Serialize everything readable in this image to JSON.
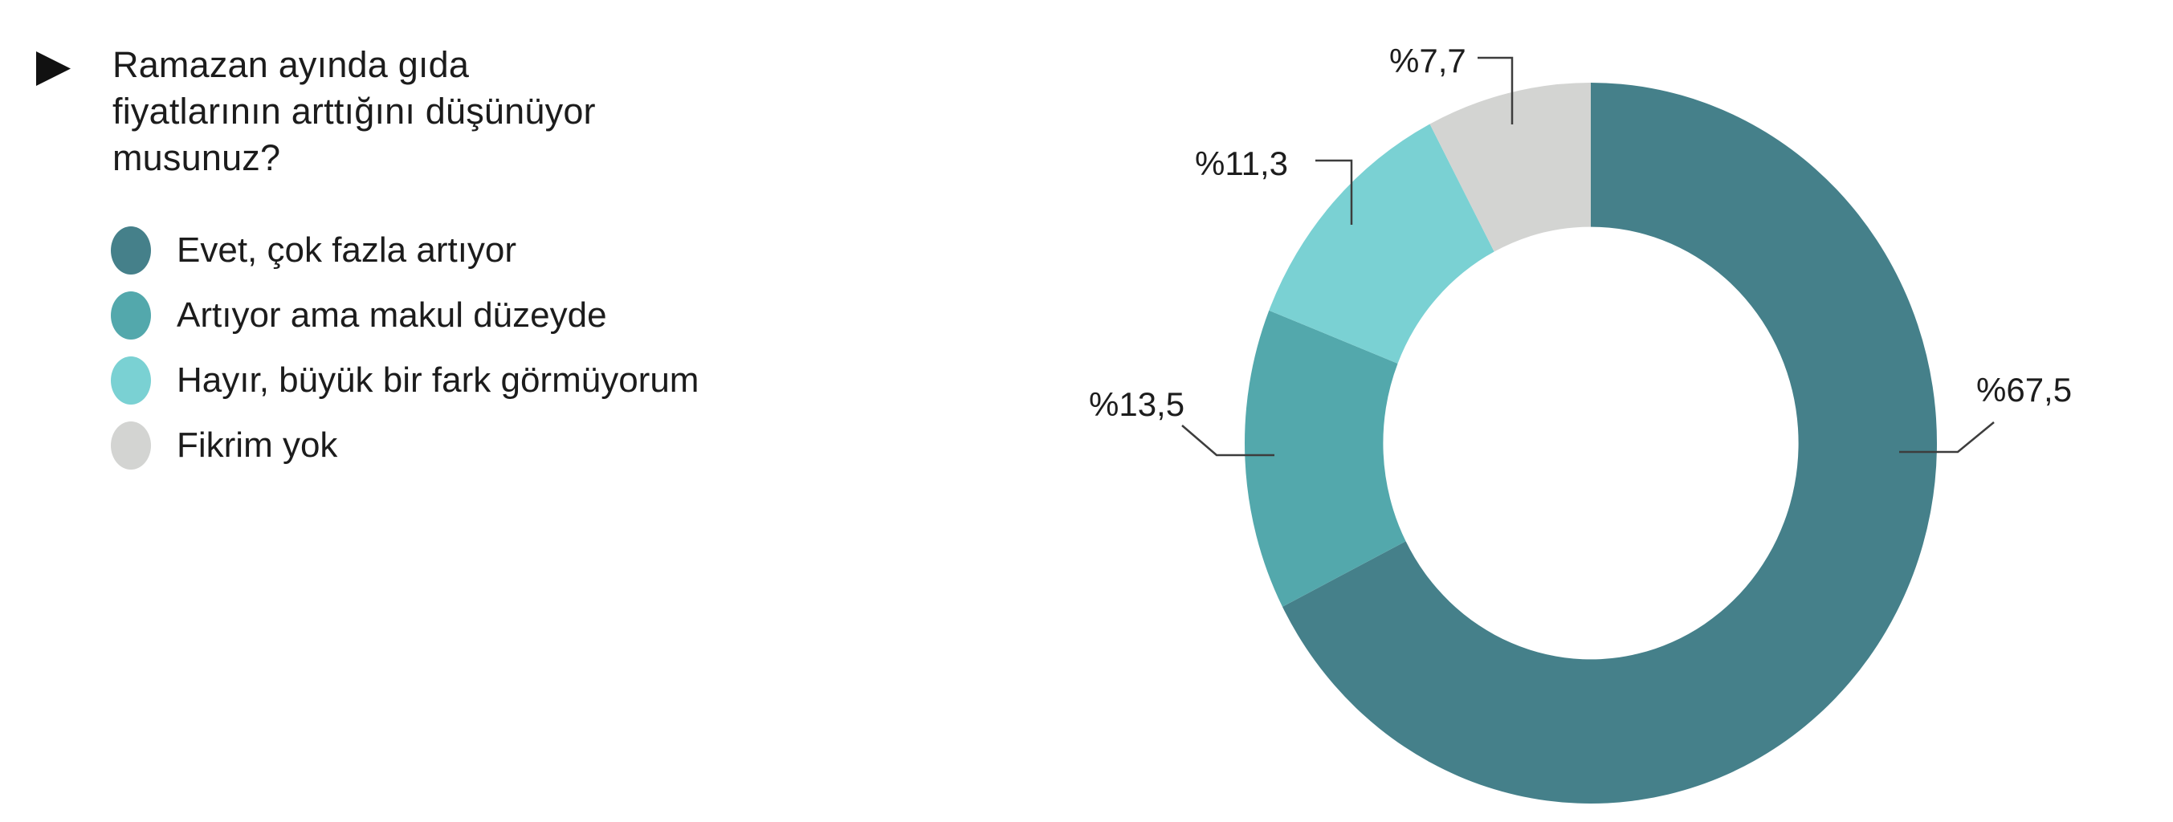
{
  "question": {
    "bullet_icon": "play-triangle",
    "full_text": "Ramazan ayında gıda fiyatlarının arttığını düşünüyor musunuz?",
    "lines": [
      "Ramazan ayında gıda",
      "fiyatlarının arttığını düşünüyor",
      "musunuz?"
    ]
  },
  "chart_data": {
    "type": "pie",
    "subtype": "donut",
    "title": "Ramazan ayında gıda fiyatlarının arttığını düşünüyor musunuz?",
    "start_angle_deg": 0,
    "direction": "clockwise",
    "hole_ratio": 0.6,
    "legend_position": "left",
    "total": 100,
    "segments": [
      {
        "label": "Evet, çok fazla artıyor",
        "value": 67.5,
        "value_display": "%67,5",
        "color": "#45808A"
      },
      {
        "label": "Artıyor ama makul düzeyde",
        "value": 13.5,
        "value_display": "%13,5",
        "color": "#53A8AC"
      },
      {
        "label": "Hayır, büyük bir fark görmüyorum",
        "value": 11.3,
        "value_display": "%11,3",
        "color": "#7AD1D3"
      },
      {
        "label": "Fikrim yok",
        "value": 7.7,
        "value_display": "%7,7",
        "color": "#D3D4D2"
      }
    ]
  },
  "colors": {
    "text": "#1c1c1c",
    "leader_line": "#3d3d3d",
    "background": "#ffffff"
  }
}
